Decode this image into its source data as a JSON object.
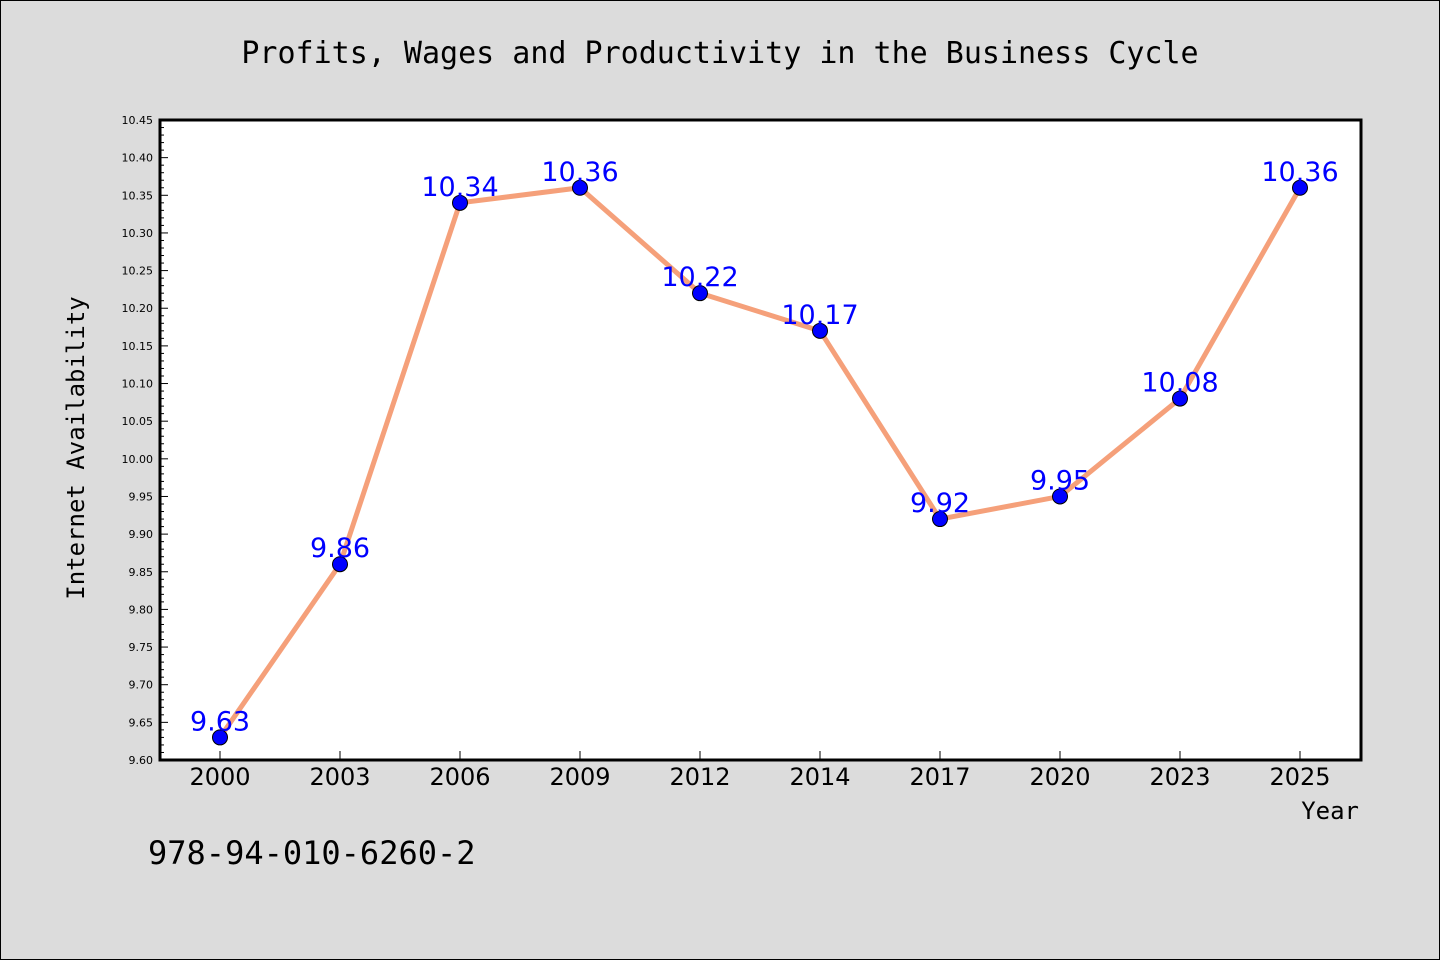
{
  "chart_data": {
    "type": "line",
    "title": "Profits, Wages and Productivity in the Business Cycle",
    "xlabel": "Year",
    "ylabel": "Internet Availability",
    "categories": [
      "2000",
      "2003",
      "2006",
      "2009",
      "2012",
      "2014",
      "2017",
      "2020",
      "2023",
      "2025"
    ],
    "series": [
      {
        "values": [
          9.63,
          9.86,
          10.34,
          10.36,
          10.22,
          10.17,
          9.92,
          9.95,
          10.08,
          10.36
        ],
        "labels": [
          "9.63",
          "9.86",
          "10.34",
          "10.36",
          "10.22",
          "10.17",
          "9.92",
          "9.95",
          "10.08",
          "10.36"
        ],
        "line_color": "#f5a07a",
        "marker_color": "#0000ff",
        "label_color": "#0000ff"
      }
    ],
    "ylim": [
      9.6,
      10.45
    ],
    "yticks": [
      "9.60",
      "9.65",
      "9.70",
      "9.75",
      "9.80",
      "9.85",
      "9.90",
      "9.95",
      "10.00",
      "10.05",
      "10.10",
      "10.15",
      "10.20",
      "10.25",
      "10.30",
      "10.35",
      "10.40",
      "10.45"
    ],
    "grid": false,
    "legend": "none"
  },
  "footer": {
    "isbn": "978-94-010-6260-2"
  },
  "colors": {
    "background": "#dcdcdc",
    "plot_background": "#ffffff"
  }
}
